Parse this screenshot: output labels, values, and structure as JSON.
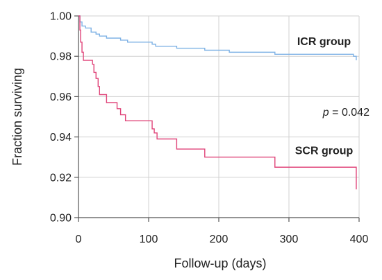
{
  "chart_data": {
    "type": "line",
    "title": "",
    "xlabel": "Follow-up (days)",
    "ylabel": "Fraction  surviving",
    "xlim": [
      0,
      400
    ],
    "ylim": [
      0.9,
      1.0
    ],
    "xticks": [
      0,
      100,
      200,
      300,
      400
    ],
    "yticks": [
      0.9,
      0.92,
      0.94,
      0.96,
      0.98,
      1.0
    ],
    "xtick_labels": [
      "0",
      "100",
      "200",
      "300",
      "400"
    ],
    "ytick_labels": [
      "0.90",
      "0.92",
      "0.94",
      "0.96",
      "0.98",
      "1.00"
    ],
    "grid": true,
    "step": true,
    "series": [
      {
        "name": "ICR group",
        "color": "#7fb2e5",
        "points": [
          [
            0,
            1.0
          ],
          [
            2,
            0.997
          ],
          [
            5,
            0.995
          ],
          [
            10,
            0.994
          ],
          [
            18,
            0.992
          ],
          [
            25,
            0.991
          ],
          [
            30,
            0.99
          ],
          [
            40,
            0.989
          ],
          [
            60,
            0.988
          ],
          [
            70,
            0.987
          ],
          [
            105,
            0.986
          ],
          [
            110,
            0.985
          ],
          [
            140,
            0.984
          ],
          [
            180,
            0.983
          ],
          [
            215,
            0.982
          ],
          [
            280,
            0.981
          ],
          [
            392,
            0.98
          ],
          [
            396,
            0.978
          ]
        ]
      },
      {
        "name": "SCR group",
        "color": "#e0457a",
        "points": [
          [
            0,
            1.0
          ],
          [
            2,
            0.993
          ],
          [
            3,
            0.987
          ],
          [
            5,
            0.982
          ],
          [
            7,
            0.978
          ],
          [
            20,
            0.976
          ],
          [
            22,
            0.972
          ],
          [
            25,
            0.969
          ],
          [
            28,
            0.965
          ],
          [
            30,
            0.961
          ],
          [
            40,
            0.957
          ],
          [
            55,
            0.954
          ],
          [
            60,
            0.951
          ],
          [
            67,
            0.948
          ],
          [
            105,
            0.944
          ],
          [
            108,
            0.942
          ],
          [
            112,
            0.939
          ],
          [
            140,
            0.934
          ],
          [
            180,
            0.93
          ],
          [
            280,
            0.925
          ],
          [
            392,
            0.925
          ],
          [
            396,
            0.914
          ]
        ]
      }
    ],
    "annotations": [
      {
        "text_italic": "p",
        "text": " = 0.042",
        "x": 340,
        "y": 0.9505
      }
    ]
  }
}
